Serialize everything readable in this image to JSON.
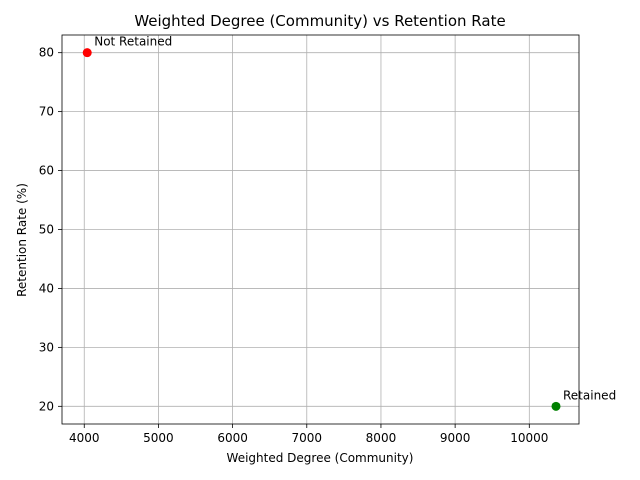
{
  "chart_data": {
    "type": "scatter",
    "title": "Weighted Degree (Community) vs Retention Rate",
    "xlabel": "Weighted Degree (Community)",
    "ylabel": "Retention Rate (%)",
    "xlim": [
      3700,
      10670
    ],
    "ylim": [
      17,
      83
    ],
    "xticks": [
      4000,
      5000,
      6000,
      7000,
      8000,
      9000,
      10000
    ],
    "yticks": [
      20,
      30,
      40,
      50,
      60,
      70,
      80
    ],
    "grid": true,
    "points": [
      {
        "label": "Not Retained",
        "x": 4040,
        "y": 80,
        "color": "#ff0000"
      },
      {
        "label": "Retained",
        "x": 10360,
        "y": 20,
        "color": "#008000"
      }
    ]
  }
}
